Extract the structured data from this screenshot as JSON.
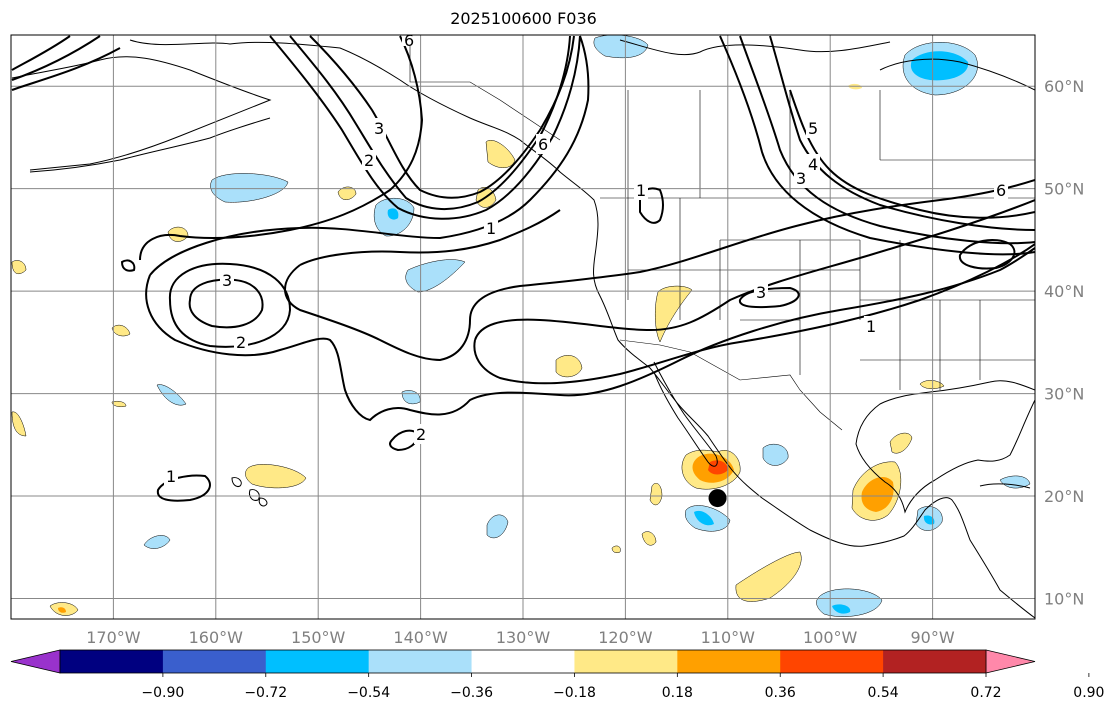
{
  "title": "2025100600 F036",
  "map": {
    "projection": "PlateCarree",
    "lon_range_deg": [
      -180,
      -80
    ],
    "lat_range_deg": [
      8,
      65
    ],
    "lon_ticks": [
      {
        "value": -170,
        "label": "170°W"
      },
      {
        "value": -160,
        "label": "160°W"
      },
      {
        "value": -150,
        "label": "150°W"
      },
      {
        "value": -140,
        "label": "140°W"
      },
      {
        "value": -130,
        "label": "130°W"
      },
      {
        "value": -120,
        "label": "120°W"
      },
      {
        "value": -110,
        "label": "110°W"
      },
      {
        "value": -100,
        "label": "100°W"
      },
      {
        "value": -90,
        "label": "90°W"
      }
    ],
    "lat_ticks": [
      {
        "value": 60,
        "label": "60°N"
      },
      {
        "value": 50,
        "label": "50°N"
      },
      {
        "value": 40,
        "label": "40°N"
      },
      {
        "value": 30,
        "label": "30°N"
      },
      {
        "value": 20,
        "label": "20°N"
      },
      {
        "value": 10,
        "label": "10°N"
      }
    ],
    "grid": true,
    "marker": {
      "name": "storm-center-marker",
      "lon": -111,
      "lat": 19.8
    },
    "contour_labels": [
      "1",
      "1",
      "1",
      "1",
      "2",
      "2",
      "2",
      "3",
      "3",
      "3",
      "3",
      "4",
      "5",
      "6",
      "6",
      "6"
    ]
  },
  "colorbar": {
    "orientation": "horizontal",
    "extend": "both",
    "under_color": "#9932cc",
    "over_color": "#ff88aa",
    "colors": [
      "#000080",
      "#3a5fcd",
      "#00bfff",
      "#aae0fa",
      "#ffffff",
      "#ffe987",
      "#ffa000",
      "#ff4500",
      "#b22222"
    ],
    "bounds": [
      -0.9,
      -0.72,
      -0.54,
      -0.36,
      -0.18,
      0.18,
      0.36,
      0.54,
      0.72,
      0.9
    ],
    "tick_labels": [
      "−0.90",
      "−0.72",
      "−0.54",
      "−0.36",
      "−0.18",
      "0.18",
      "0.36",
      "0.54",
      "0.72",
      "0.90"
    ]
  }
}
